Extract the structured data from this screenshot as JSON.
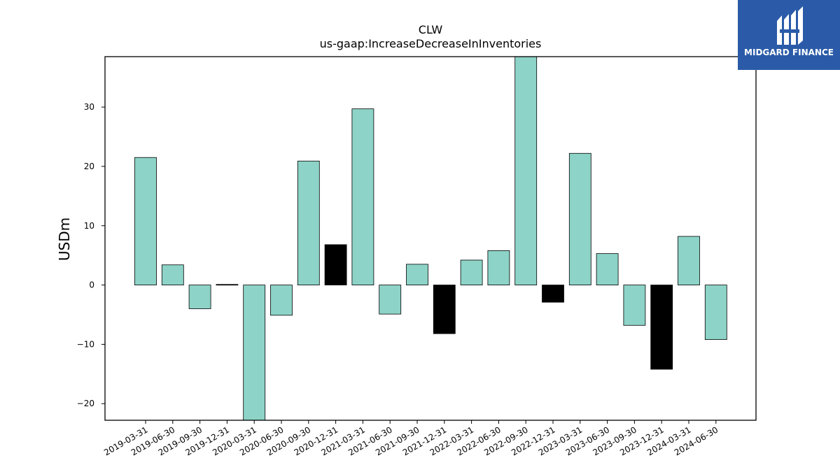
{
  "logo": {
    "text": "MIDGARD FINANCE"
  },
  "chart_data": {
    "type": "bar",
    "title": "CLW",
    "subtitle": "us-gaap:IncreaseDecreaseInInventories",
    "xlabel": "",
    "ylabel": "USDm",
    "ylim": [
      -22.8,
      38.5
    ],
    "yticks": [
      -20,
      -10,
      0,
      10,
      20,
      30
    ],
    "ytick_labels": [
      "−20",
      "−10",
      "0",
      "10",
      "20",
      "30"
    ],
    "grid": false,
    "categories": [
      "2019-03-31",
      "2019-06-30",
      "2019-09-30",
      "2019-12-31",
      "2020-03-31",
      "2020-06-30",
      "2020-09-30",
      "2020-12-31",
      "2021-03-31",
      "2021-06-30",
      "2021-09-30",
      "2021-12-31",
      "2022-03-31",
      "2022-06-30",
      "2022-09-30",
      "2022-12-31",
      "2023-03-31",
      "2023-06-30",
      "2023-09-30",
      "2023-12-31",
      "2024-03-31",
      "2024-06-30"
    ],
    "values": [
      21.5,
      3.4,
      -4.0,
      0.1,
      -24.0,
      -5.1,
      20.9,
      6.8,
      29.7,
      -4.9,
      3.5,
      -8.2,
      4.2,
      5.8,
      40.0,
      -2.9,
      22.2,
      5.3,
      -6.8,
      -14.2,
      8.2,
      -9.2
    ],
    "bar_colors": [
      "#8dd3c7",
      "#8dd3c7",
      "#8dd3c7",
      "#000000",
      "#8dd3c7",
      "#8dd3c7",
      "#8dd3c7",
      "#000000",
      "#8dd3c7",
      "#8dd3c7",
      "#8dd3c7",
      "#000000",
      "#8dd3c7",
      "#8dd3c7",
      "#8dd3c7",
      "#000000",
      "#8dd3c7",
      "#8dd3c7",
      "#8dd3c7",
      "#000000",
      "#8dd3c7",
      "#8dd3c7"
    ]
  }
}
